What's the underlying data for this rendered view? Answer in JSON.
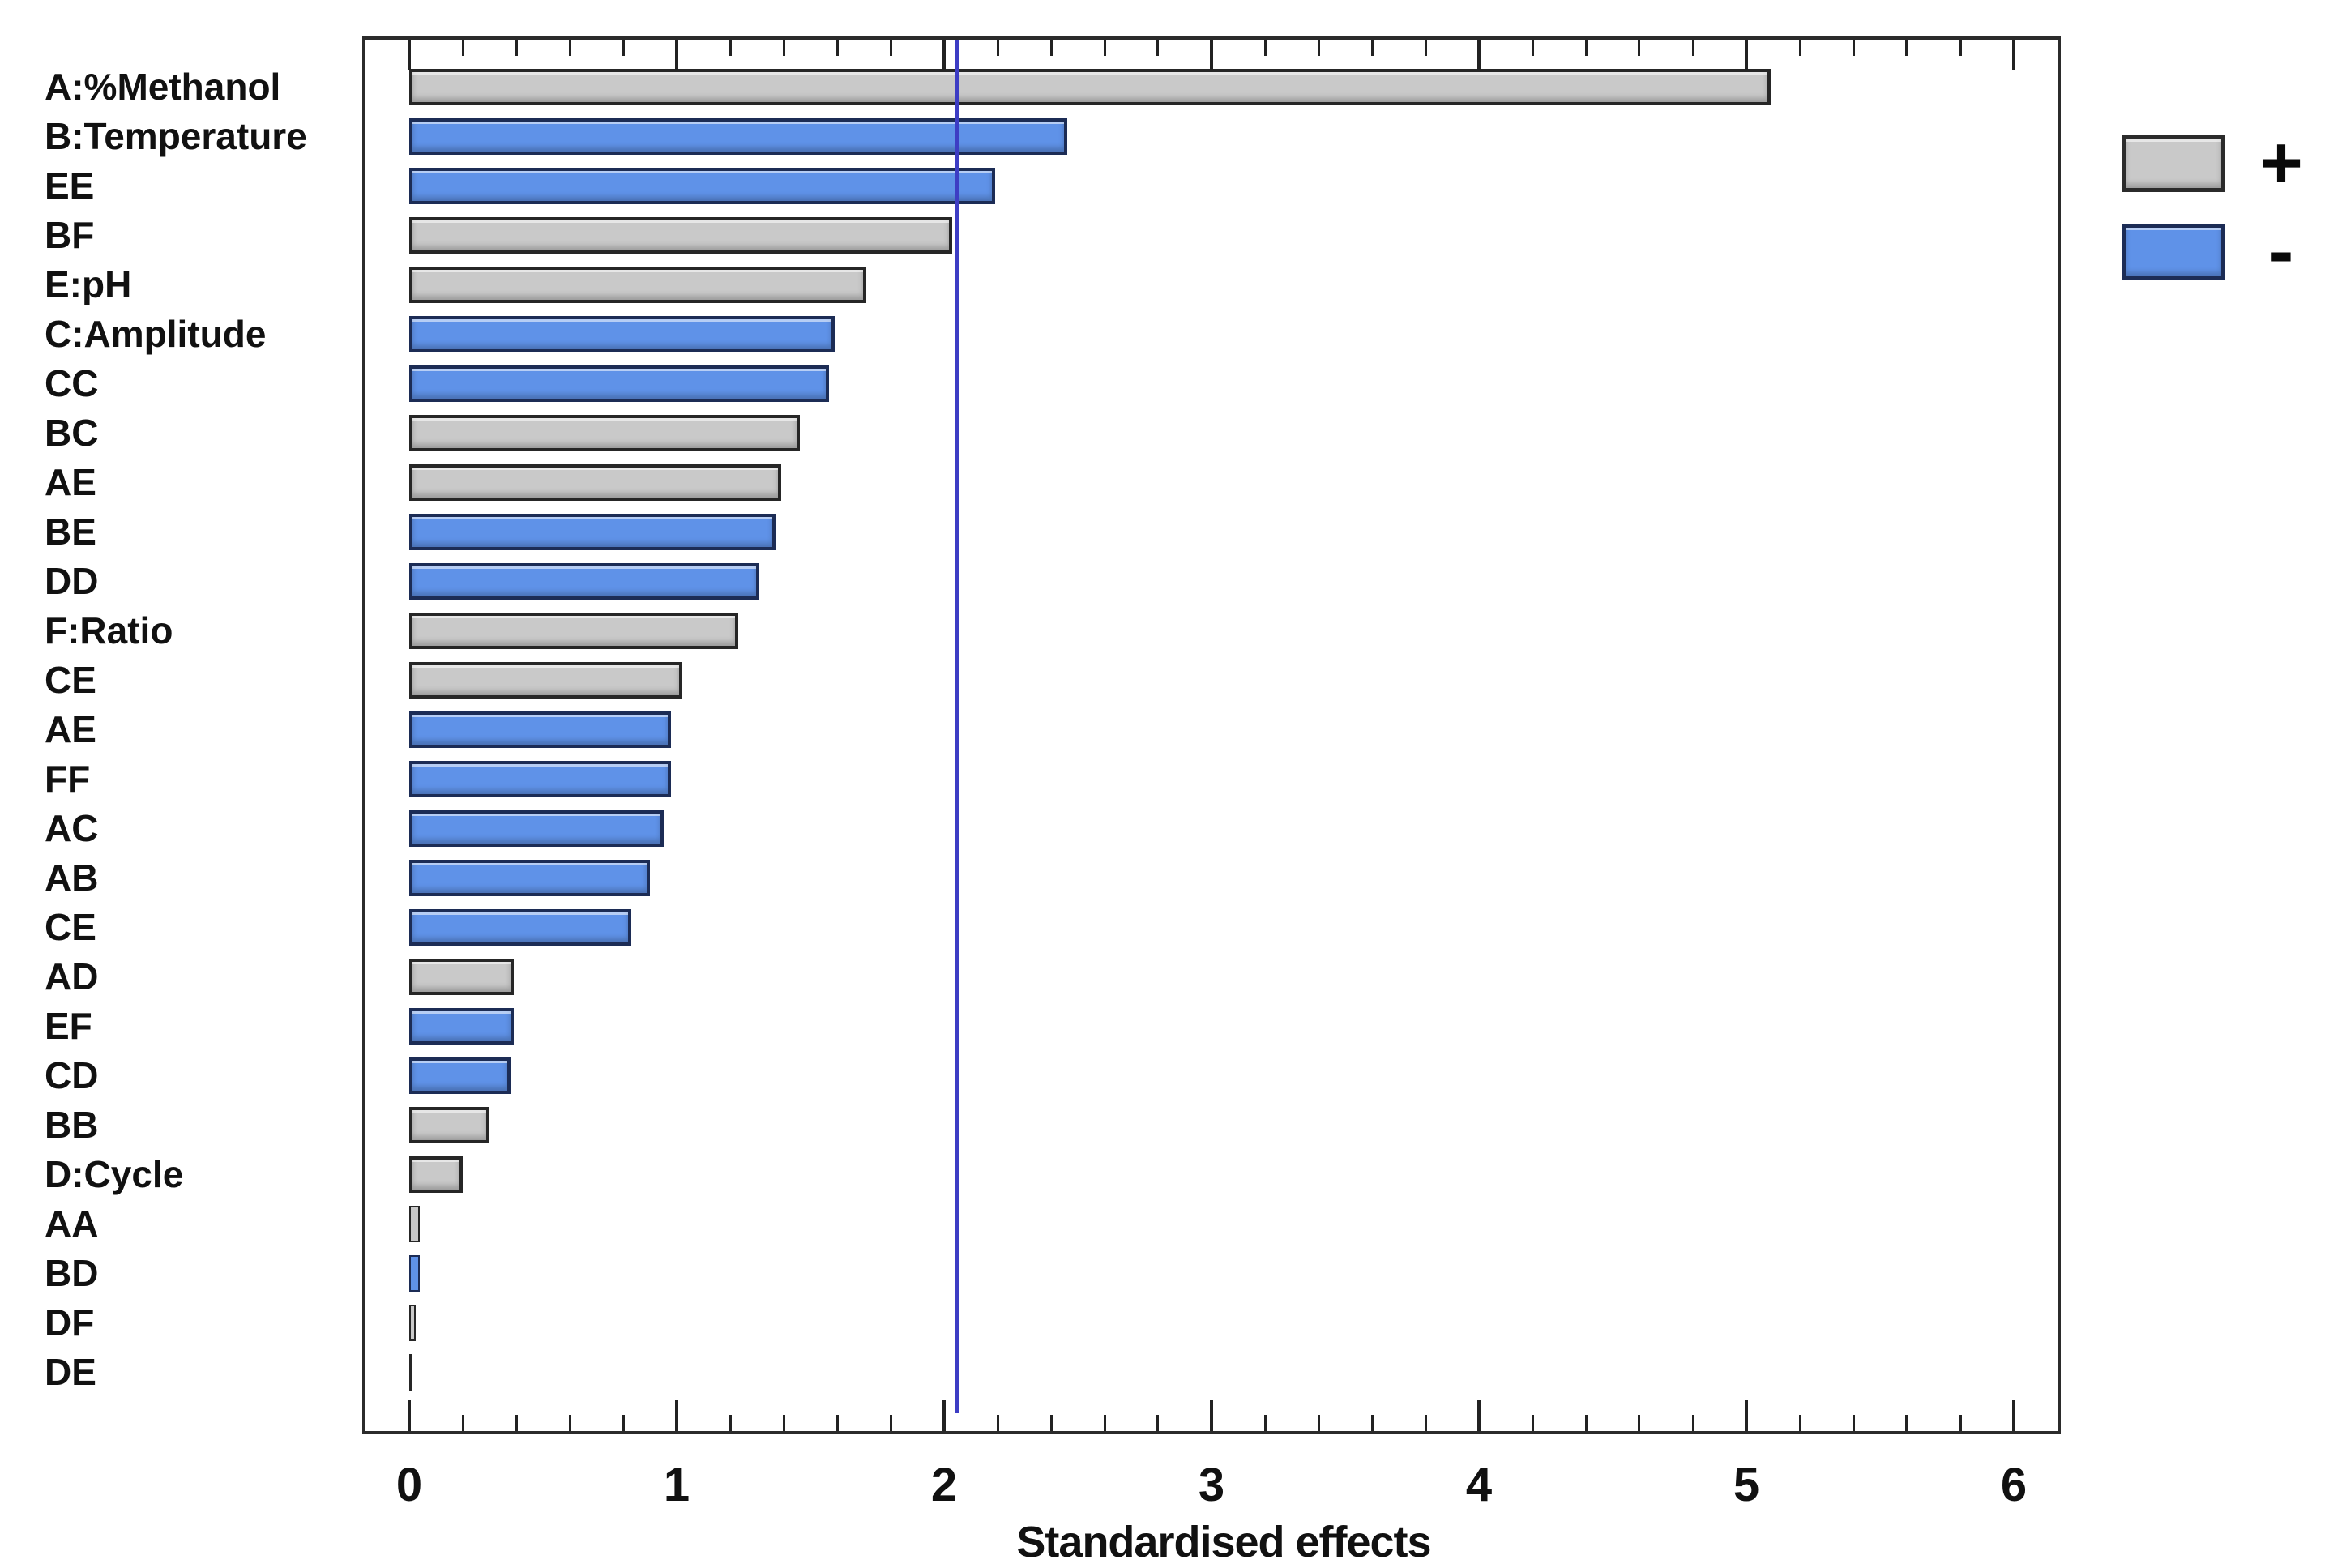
{
  "chart_data": {
    "type": "bar",
    "orientation": "horizontal",
    "title": "",
    "xlabel": "Standardised effects",
    "x_ticks": [
      0,
      1,
      2,
      3,
      4,
      5,
      6
    ],
    "xlim": [
      -0.18,
      6.18
    ],
    "minor_tick_step": 0.2,
    "grid": false,
    "legend_position": "top-right",
    "reference_line": {
      "value": 2.05,
      "meaning": "significance threshold"
    },
    "legend": [
      {
        "label": "+",
        "sign": "positive",
        "color": "#c9c9c9"
      },
      {
        "label": "-",
        "sign": "negative",
        "color": "#5f92e8"
      }
    ],
    "bars": [
      {
        "label": "A:%Methanol",
        "value": 5.09,
        "sign": "+"
      },
      {
        "label": "B:Temperature",
        "value": 2.46,
        "sign": "-"
      },
      {
        "label": "EE",
        "value": 2.19,
        "sign": "-"
      },
      {
        "label": "BF",
        "value": 2.03,
        "sign": "+"
      },
      {
        "label": "E:pH",
        "value": 1.71,
        "sign": "+"
      },
      {
        "label": "C:Amplitude",
        "value": 1.59,
        "sign": "-"
      },
      {
        "label": "CC",
        "value": 1.57,
        "sign": "-"
      },
      {
        "label": "BC",
        "value": 1.46,
        "sign": "+"
      },
      {
        "label": "AE",
        "value": 1.39,
        "sign": "+"
      },
      {
        "label": "BE",
        "value": 1.37,
        "sign": "-"
      },
      {
        "label": "DD",
        "value": 1.31,
        "sign": "-"
      },
      {
        "label": "F:Ratio",
        "value": 1.23,
        "sign": "+"
      },
      {
        "label": "CE",
        "value": 1.02,
        "sign": "+"
      },
      {
        "label": "AE",
        "value": 0.98,
        "sign": "-"
      },
      {
        "label": "FF",
        "value": 0.98,
        "sign": "-"
      },
      {
        "label": "AC",
        "value": 0.95,
        "sign": "-"
      },
      {
        "label": "AB",
        "value": 0.9,
        "sign": "-"
      },
      {
        "label": "CE",
        "value": 0.83,
        "sign": "-"
      },
      {
        "label": "AD",
        "value": 0.39,
        "sign": "+"
      },
      {
        "label": "EF",
        "value": 0.39,
        "sign": "-"
      },
      {
        "label": "CD",
        "value": 0.38,
        "sign": "-"
      },
      {
        "label": "BB",
        "value": 0.3,
        "sign": "+"
      },
      {
        "label": "D:Cycle",
        "value": 0.2,
        "sign": "+"
      },
      {
        "label": "AA",
        "value": 0.04,
        "sign": "+"
      },
      {
        "label": "BD",
        "value": 0.04,
        "sign": "-"
      },
      {
        "label": "DF",
        "value": 0.025,
        "sign": "+"
      },
      {
        "label": "DE",
        "value": 0.01,
        "sign": "+"
      }
    ]
  },
  "colors": {
    "background": "#ffffff",
    "positive_fill": "#c9c9c9",
    "negative_fill": "#5f92e8",
    "positive_border": "#262626",
    "negative_border": "#1c2c55",
    "axis": "#2b2b2b",
    "reference_line": "#3d3dc4",
    "text": "#111111"
  }
}
